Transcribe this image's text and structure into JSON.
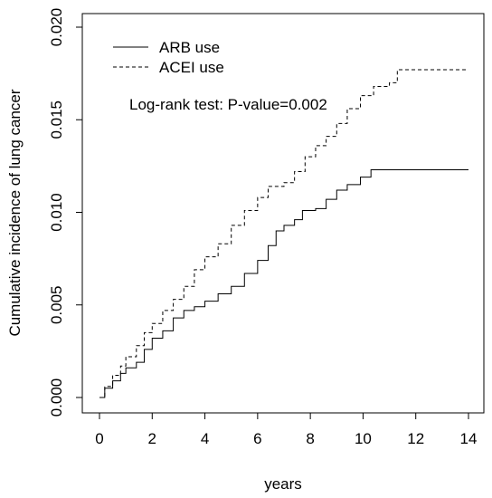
{
  "chart_data": {
    "type": "line",
    "title": "",
    "xlabel": "years",
    "ylabel": "Cumulative incidence of lung cancer",
    "xlim": [
      0,
      14
    ],
    "ylim": [
      0,
      0.02
    ],
    "x_ticks": [
      0,
      2,
      4,
      6,
      8,
      10,
      12,
      14
    ],
    "x_tick_labels": [
      "0",
      "2",
      "4",
      "6",
      "8",
      "10",
      "12",
      "14"
    ],
    "y_ticks": [
      0,
      0.005,
      0.01,
      0.015,
      0.02
    ],
    "y_tick_labels": [
      "0.000",
      "0.005",
      "0.010",
      "0.015",
      "0.020"
    ],
    "grid": false,
    "legend_position": "top-left",
    "annotation": "Log-rank test: P-value=0.002",
    "series": [
      {
        "name": "ARB use",
        "line_style": "solid",
        "color": "#000000",
        "points": [
          [
            0,
            0
          ],
          [
            0.2,
            0.0005
          ],
          [
            0.5,
            0.0009
          ],
          [
            0.8,
            0.0013
          ],
          [
            1.0,
            0.0016
          ],
          [
            1.4,
            0.0019
          ],
          [
            1.7,
            0.0026
          ],
          [
            2.0,
            0.0032
          ],
          [
            2.4,
            0.0036
          ],
          [
            2.8,
            0.0043
          ],
          [
            3.2,
            0.0047
          ],
          [
            3.6,
            0.0049
          ],
          [
            4.0,
            0.0052
          ],
          [
            4.5,
            0.0056
          ],
          [
            5.0,
            0.006
          ],
          [
            5.5,
            0.0067
          ],
          [
            6.0,
            0.0074
          ],
          [
            6.4,
            0.0082
          ],
          [
            6.7,
            0.009
          ],
          [
            7.0,
            0.0093
          ],
          [
            7.4,
            0.0096
          ],
          [
            7.7,
            0.0101
          ],
          [
            8.2,
            0.0102
          ],
          [
            8.6,
            0.0107
          ],
          [
            9.0,
            0.0112
          ],
          [
            9.4,
            0.0115
          ],
          [
            9.9,
            0.0119
          ],
          [
            10.3,
            0.0123
          ],
          [
            11.0,
            0.0123
          ],
          [
            12.0,
            0.0123
          ],
          [
            14.0,
            0.0123
          ]
        ]
      },
      {
        "name": "ACEI use",
        "line_style": "dashed",
        "color": "#000000",
        "points": [
          [
            0,
            0
          ],
          [
            0.2,
            0.0006
          ],
          [
            0.5,
            0.0012
          ],
          [
            0.8,
            0.0017
          ],
          [
            1.0,
            0.0022
          ],
          [
            1.4,
            0.0028
          ],
          [
            1.7,
            0.0035
          ],
          [
            2.0,
            0.004
          ],
          [
            2.4,
            0.0047
          ],
          [
            2.8,
            0.0053
          ],
          [
            3.2,
            0.006
          ],
          [
            3.6,
            0.0069
          ],
          [
            4.0,
            0.0076
          ],
          [
            4.5,
            0.0083
          ],
          [
            5.0,
            0.0093
          ],
          [
            5.5,
            0.0101
          ],
          [
            6.0,
            0.0108
          ],
          [
            6.4,
            0.0114
          ],
          [
            7.0,
            0.0116
          ],
          [
            7.4,
            0.0122
          ],
          [
            7.8,
            0.013
          ],
          [
            8.2,
            0.0136
          ],
          [
            8.6,
            0.0141
          ],
          [
            9.0,
            0.0148
          ],
          [
            9.4,
            0.0156
          ],
          [
            9.9,
            0.0163
          ],
          [
            10.4,
            0.0168
          ],
          [
            11.0,
            0.017
          ],
          [
            11.3,
            0.0177
          ],
          [
            12.0,
            0.0177
          ],
          [
            14.0,
            0.0177
          ]
        ]
      }
    ]
  }
}
